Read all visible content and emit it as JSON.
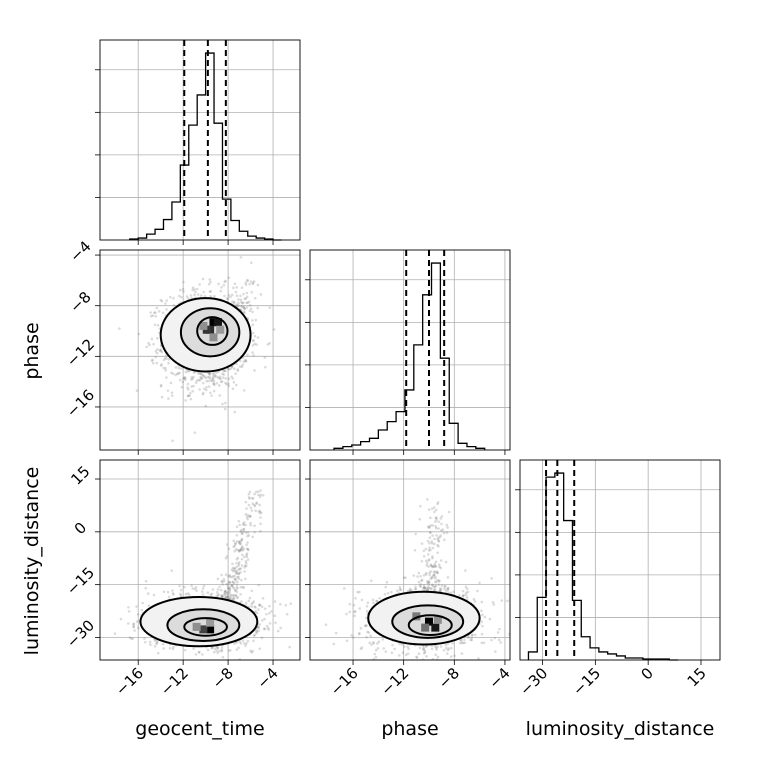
{
  "chart_data": {
    "type": "corner",
    "parameters": [
      "geocent_time",
      "phase",
      "luminosity_distance"
    ],
    "labels": {
      "geocent_time": "geocent_time",
      "phase": "phase",
      "luminosity_distance": "luminosity_distance"
    },
    "ranges": {
      "geocent_time": [
        -19.4,
        -1.6
      ],
      "phase": [
        -19.4,
        -3.6
      ],
      "luminosity_distance": [
        -36.4,
        20.4
      ]
    },
    "ticks": {
      "geocent_time": [
        -16,
        -12,
        -8,
        -4
      ],
      "phase": [
        -16,
        -12,
        -8,
        -4
      ],
      "luminosity_distance": [
        -30,
        -15,
        0,
        15
      ]
    },
    "tick_labels": {
      "geocent_time": [
        "−16",
        "−12",
        "−8",
        "−4"
      ],
      "phase": [
        "−16",
        "−12",
        "−8",
        "−4"
      ],
      "luminosity_distance": [
        "−30",
        "−15",
        "0",
        "15"
      ]
    },
    "grid": true,
    "marginals": {
      "geocent_time": {
        "bin_edges": [
          -16.75,
          -16.0,
          -15.25,
          -14.5,
          -13.75,
          -13.0,
          -12.25,
          -11.5,
          -10.75,
          -10.0,
          -9.25,
          -8.5,
          -7.75,
          -7.0,
          -6.25,
          -5.5,
          -4.75,
          -4.0,
          -3.25
        ],
        "counts": [
          1,
          2,
          6,
          11,
          21,
          39,
          77,
          118,
          149,
          192,
          120,
          42,
          20,
          9,
          4,
          2,
          1,
          0
        ],
        "quantiles": [
          -11.9,
          -9.8,
          -8.2
        ]
      },
      "phase": {
        "bin_edges": [
          -17.5,
          -16.8,
          -16.1,
          -15.4,
          -14.7,
          -14.0,
          -13.3,
          -12.6,
          -11.9,
          -11.2,
          -10.5,
          -9.8,
          -9.1,
          -8.4,
          -7.7,
          -7.0,
          -6.3,
          -5.6
        ],
        "counts": [
          2,
          4,
          6,
          10,
          14,
          24,
          34,
          46,
          72,
          126,
          186,
          224,
          110,
          32,
          8,
          4,
          2
        ],
        "quantiles": [
          -11.8,
          -10.0,
          -8.8
        ]
      },
      "luminosity_distance": {
        "bin_edges": [
          -34.0,
          -31.5,
          -29.0,
          -26.5,
          -24.0,
          -21.5,
          -19.0,
          -16.5,
          -14.0,
          -11.5,
          -9.0,
          -6.5,
          -4.0,
          -1.5,
          1.0,
          3.5,
          6.0,
          8.5
        ],
        "counts": [
          8,
          62,
          181,
          185,
          138,
          59,
          23,
          12,
          8,
          6,
          4,
          2,
          2,
          1,
          1,
          1,
          0
        ],
        "quantiles": [
          -29.0,
          -25.8,
          -21.0
        ]
      }
    },
    "joint": [
      {
        "x": "geocent_time",
        "y": "phase",
        "scatter": {
          "center": [
            -10.0,
            -10.7
          ],
          "spread": [
            1.9,
            1.9
          ],
          "n": 1400,
          "tail": {
            "from": [
              -9.5,
              -10.5
            ],
            "to": [
              -5.5,
              -6.5
            ],
            "n": 170
          }
        },
        "contours": [
          {
            "center": [
              -10.0,
              -10.3
            ],
            "rx": 4.0,
            "ry": 2.9
          },
          {
            "center": [
              -9.6,
              -10.1
            ],
            "rx": 2.6,
            "ry": 1.9
          },
          {
            "center": [
              -9.4,
              -10.0
            ],
            "rx": 1.35,
            "ry": 1.1
          }
        ],
        "density_cells": [
          {
            "x": -9.3,
            "y": -9.3,
            "level": 1.0
          },
          {
            "x": -9.6,
            "y": -9.9,
            "level": 0.8
          },
          {
            "x": -9.9,
            "y": -9.9,
            "level": 0.75
          },
          {
            "x": -8.9,
            "y": -9.3,
            "level": 0.9
          },
          {
            "x": -10.2,
            "y": -9.6,
            "level": 0.35
          },
          {
            "x": -8.7,
            "y": -9.9,
            "level": 0.3
          },
          {
            "x": -9.3,
            "y": -10.5,
            "level": 0.35
          }
        ]
      },
      {
        "x": "geocent_time",
        "y": "luminosity_distance",
        "scatter": {
          "center": [
            -10.0,
            -25.5
          ],
          "spread": [
            2.6,
            4.0
          ],
          "n": 1200,
          "tail": {
            "from": [
              -8.0,
              -20.0
            ],
            "to": [
              -5.5,
              12.0
            ],
            "n": 240
          }
        },
        "contours": [
          {
            "center": [
              -10.6,
              -25.5
            ],
            "rx": 5.2,
            "ry": 7.0
          },
          {
            "center": [
              -10.2,
              -26.5
            ],
            "rx": 3.2,
            "ry": 4.5
          },
          {
            "center": [
              -10.0,
              -27.0
            ],
            "rx": 1.9,
            "ry": 2.5
          }
        ],
        "density_cells": [
          {
            "x": -9.6,
            "y": -27.7,
            "level": 1.0
          },
          {
            "x": -10.2,
            "y": -27.7,
            "level": 0.7
          },
          {
            "x": -10.8,
            "y": -27.0,
            "level": 0.35
          },
          {
            "x": -9.6,
            "y": -25.8,
            "level": 0.3
          }
        ]
      },
      {
        "x": "phase",
        "y": "luminosity_distance",
        "scatter": {
          "center": [
            -10.4,
            -25.0
          ],
          "spread": [
            2.2,
            4.6
          ],
          "n": 1200,
          "tail": {
            "from": [
              -10.0,
              -20.0
            ],
            "to": [
              -9.3,
              8.0
            ],
            "n": 200
          }
        },
        "contours": [
          {
            "center": [
              -10.4,
              -24.5
            ],
            "rx": 4.4,
            "ry": 7.5
          },
          {
            "center": [
              -10.1,
              -25.5
            ],
            "rx": 2.8,
            "ry": 4.6
          },
          {
            "center": [
              -9.9,
              -26.5
            ],
            "rx": 1.7,
            "ry": 2.8
          }
        ],
        "density_cells": [
          {
            "x": -10.0,
            "y": -25.5,
            "level": 1.0
          },
          {
            "x": -9.5,
            "y": -27.2,
            "level": 0.9
          },
          {
            "x": -10.3,
            "y": -27.2,
            "level": 0.5
          },
          {
            "x": -11.0,
            "y": -24.0,
            "level": 0.45
          },
          {
            "x": -9.3,
            "y": -25.0,
            "level": 0.35
          }
        ]
      }
    ]
  }
}
